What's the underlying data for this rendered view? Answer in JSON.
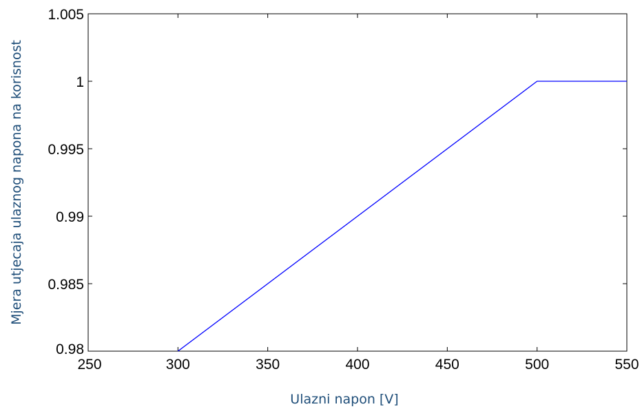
{
  "chart_data": {
    "type": "line",
    "title": "",
    "xlabel": "Ulazni napon [V]",
    "ylabel": "Mjera utjecaja ulaznog napona na korisnost",
    "xlim": [
      250,
      550
    ],
    "ylim": [
      0.98,
      1.005
    ],
    "xticks": [
      "250",
      "300",
      "350",
      "400",
      "450",
      "500",
      "550"
    ],
    "yticks": [
      "0.98",
      "0.985",
      "0.99",
      "0.995",
      "1",
      "1.005"
    ],
    "grid": false,
    "series": [
      {
        "color": "#0000ff",
        "x": [
          300,
          500,
          550
        ],
        "y": [
          0.98,
          1.0,
          1.0
        ]
      }
    ]
  }
}
